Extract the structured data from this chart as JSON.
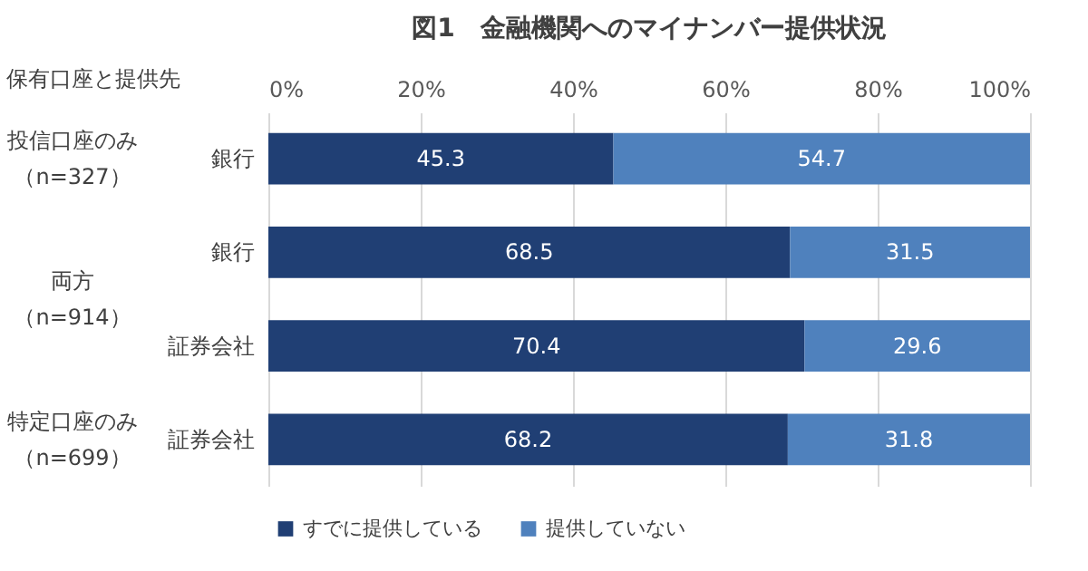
{
  "chart_data": {
    "type": "bar",
    "orientation": "horizontal",
    "stacked": true,
    "title": "図1　金融機関へのマイナンバー提供状況",
    "ylabel": "保有口座と提供先",
    "categories": [
      "銀行",
      "銀行",
      "証券会社",
      "証券会社"
    ],
    "annotations": [
      "投信口座のみ",
      "（n=327）",
      "両方",
      "（n=914）",
      "特定口座のみ",
      "（n=699）"
    ],
    "series": [
      {
        "name": "すでに提供している",
        "color": "#203f74",
        "values": [
          45.3,
          68.5,
          70.4,
          68.2
        ]
      },
      {
        "name": "提供していない",
        "color": "#4f81bd",
        "values": [
          54.7,
          31.5,
          29.6,
          31.8
        ]
      }
    ],
    "xlim": [
      0,
      100
    ],
    "xticks": [
      {
        "value": 0,
        "label": "0%"
      },
      {
        "value": 20,
        "label": "20%"
      },
      {
        "value": 40,
        "label": "40%"
      },
      {
        "value": 60,
        "label": "60%"
      },
      {
        "value": 80,
        "label": "80%"
      },
      {
        "value": 100,
        "label": "100%"
      }
    ],
    "grid": true,
    "legend": "bottom",
    "data_labels": true
  }
}
